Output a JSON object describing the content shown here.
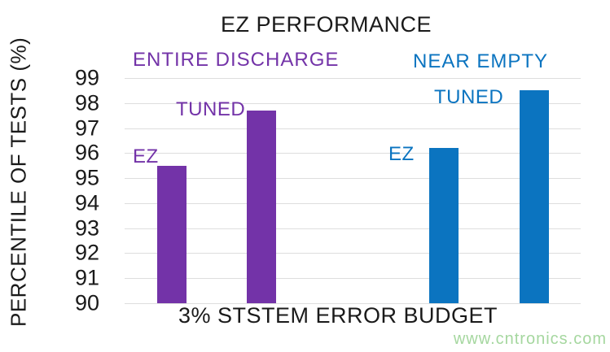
{
  "chart_data": {
    "type": "bar",
    "title": "EZ PERFORMANCE",
    "xlabel": "3% STSTEM ERROR BUDGET",
    "ylabel": "PERCENTILE OF TESTS (%)",
    "ylim": [
      90,
      99
    ],
    "yticks": [
      99,
      98,
      97,
      96,
      95,
      94,
      93,
      92,
      91,
      90
    ],
    "grid": true,
    "legend_position": "inline-labels",
    "groups": [
      {
        "label": "ENTIRE DISCHARGE",
        "color": "#7333a8",
        "bars": [
          {
            "label": "EZ",
            "value": 95.5
          },
          {
            "label": "TUNED",
            "value": 97.7
          }
        ]
      },
      {
        "label": "NEAR EMPTY",
        "color": "#0b74c0",
        "bars": [
          {
            "label": "EZ",
            "value": 96.2
          },
          {
            "label": "TUNED",
            "value": 98.5
          }
        ]
      }
    ],
    "watermark": "www.cntronics.com",
    "watermark_color": "#a5d79f"
  }
}
